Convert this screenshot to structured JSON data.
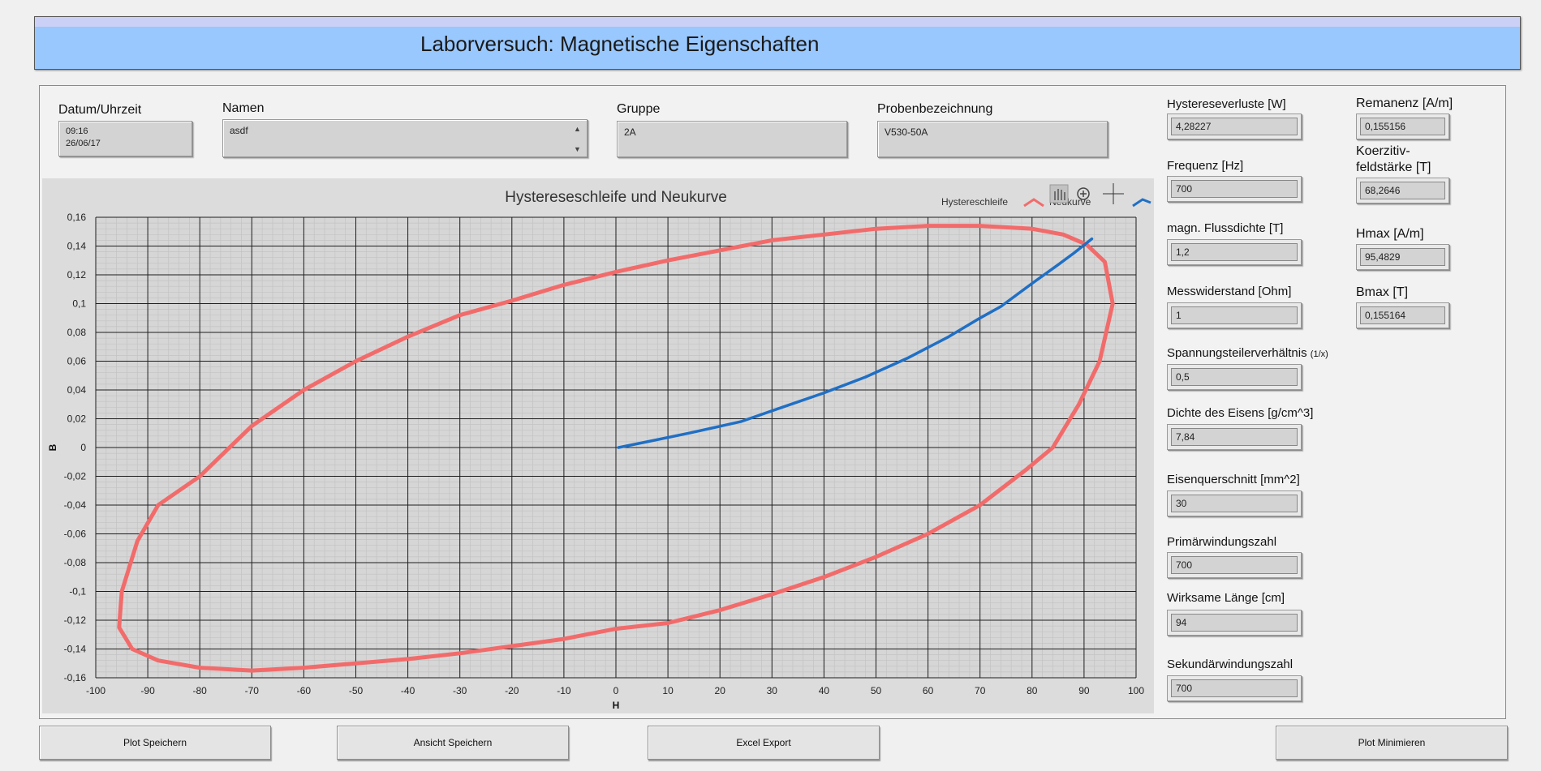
{
  "app": {
    "title": "Laborversuch: Magnetische Eigenschaften"
  },
  "inputs": {
    "datum": {
      "label": "Datum/Uhrzeit",
      "value": "09:16\n26/06/17"
    },
    "namen": {
      "label": "Namen",
      "value": "asdf"
    },
    "gruppe": {
      "label": "Gruppe",
      "value": "2A"
    },
    "probe": {
      "label": "Probenbezeichnung",
      "value": "V530-50A"
    }
  },
  "params": [
    {
      "label": "Hystereseverluste [W]",
      "value": "4,28227"
    },
    {
      "label": "Frequenz [Hz]",
      "value": "700"
    },
    {
      "label": "magn. Flussdichte [T]",
      "value": "1,2"
    },
    {
      "label": "Messwiderstand [Ohm]",
      "value": "1"
    },
    {
      "label": "Spannungsteilerverhältnis",
      "suffix": "(1/x)",
      "value": "0,5"
    },
    {
      "label": "Dichte des Eisens [g/cm^3]",
      "value": "7,84"
    },
    {
      "label": "Eisenquerschnitt [mm^2]",
      "value": "30"
    },
    {
      "label": "Primärwindungszahl",
      "value": "700"
    },
    {
      "label": "Wirksame Länge [cm]",
      "value": "94"
    },
    {
      "label": "Sekundärwindungszahl",
      "value": "700"
    }
  ],
  "results": [
    {
      "label": "Remanenz [A/m]",
      "value": "0,155156"
    },
    {
      "label": "Koerzitiv-",
      "label2": "feldstärke [T]",
      "value": "68,2646"
    },
    {
      "label": "Hmax [A/m]",
      "value": "95,4829"
    },
    {
      "label": "Bmax [T]",
      "value": "0,155164"
    }
  ],
  "buttons": {
    "plot_save": "Plot Speichern",
    "view_save": "Ansicht Speichern",
    "excel": "Excel Export",
    "plot_min": "Plot Minimieren"
  },
  "colors": {
    "hysteresis": "#f26b6b",
    "neukurve": "#1f6fc5"
  },
  "chart_data": {
    "type": "line",
    "title": "Hystereseschleife und Neukurve",
    "xlabel": "H",
    "ylabel": "B",
    "xlim": [
      -100,
      100
    ],
    "ylim": [
      -0.16,
      0.16
    ],
    "xticks": [
      "-100",
      "-90",
      "-80",
      "-70",
      "-60",
      "-50",
      "-40",
      "-30",
      "-20",
      "-10",
      "0",
      "10",
      "20",
      "30",
      "40",
      "50",
      "60",
      "70",
      "80",
      "90",
      "100"
    ],
    "yticks": [
      "0,16",
      "0,14",
      "0,12",
      "0,1",
      "0,08",
      "0,06",
      "0,04",
      "0,02",
      "0",
      "-0,02",
      "-0,04",
      "-0,06",
      "-0,08",
      "-0,1",
      "-0,12",
      "-0,14",
      "-0,16"
    ],
    "legend": [
      "Hystereschleife",
      "Neukurve"
    ],
    "series": [
      {
        "name": "Hystereschleife",
        "points": [
          [
            90.5,
            0.141
          ],
          [
            94,
            0.129
          ],
          [
            95.5,
            0.1
          ],
          [
            93,
            0.06
          ],
          [
            89,
            0.03
          ],
          [
            84,
            0
          ],
          [
            79,
            -0.015
          ],
          [
            70,
            -0.04
          ],
          [
            60,
            -0.06
          ],
          [
            50,
            -0.076
          ],
          [
            40,
            -0.09
          ],
          [
            30,
            -0.102
          ],
          [
            20,
            -0.113
          ],
          [
            10,
            -0.122
          ],
          [
            0,
            -0.126
          ],
          [
            -10,
            -0.133
          ],
          [
            -20,
            -0.138
          ],
          [
            -30,
            -0.143
          ],
          [
            -40,
            -0.147
          ],
          [
            -50,
            -0.15
          ],
          [
            -60,
            -0.153
          ],
          [
            -70,
            -0.155
          ],
          [
            -80,
            -0.153
          ],
          [
            -88,
            -0.148
          ],
          [
            -93,
            -0.14
          ],
          [
            -95.5,
            -0.125
          ],
          [
            -95,
            -0.1
          ],
          [
            -92,
            -0.065
          ],
          [
            -88,
            -0.04
          ],
          [
            -80,
            -0.02
          ],
          [
            -70,
            0.015
          ],
          [
            -60,
            0.04
          ],
          [
            -50,
            0.06
          ],
          [
            -40,
            0.077
          ],
          [
            -30,
            0.092
          ],
          [
            -20,
            0.102
          ],
          [
            -10,
            0.113
          ],
          [
            0,
            0.122
          ],
          [
            10,
            0.13
          ],
          [
            20,
            0.137
          ],
          [
            30,
            0.144
          ],
          [
            40,
            0.148
          ],
          [
            50,
            0.152
          ],
          [
            60,
            0.154
          ],
          [
            70,
            0.154
          ],
          [
            80,
            0.152
          ],
          [
            86,
            0.148
          ],
          [
            90.5,
            0.141
          ]
        ]
      },
      {
        "name": "Neukurve",
        "points": [
          [
            0.5,
            0
          ],
          [
            6,
            0.004
          ],
          [
            14,
            0.01
          ],
          [
            24,
            0.018
          ],
          [
            32,
            0.028
          ],
          [
            40,
            0.038
          ],
          [
            48,
            0.049
          ],
          [
            56,
            0.062
          ],
          [
            64,
            0.077
          ],
          [
            70,
            0.09
          ],
          [
            74,
            0.098
          ],
          [
            80,
            0.114
          ],
          [
            85,
            0.127
          ],
          [
            88,
            0.135
          ],
          [
            91.5,
            0.145
          ]
        ]
      }
    ]
  }
}
